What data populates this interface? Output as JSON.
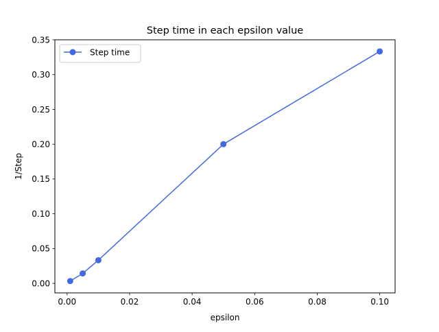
{
  "chart_data": {
    "type": "line",
    "title": "Step time in each epsilon value",
    "xlabel": "epsilon",
    "ylabel": "1/Step",
    "xlim": [
      -0.0039,
      0.1049
    ],
    "ylim": [
      -0.0137,
      0.35
    ],
    "xticks": [
      0.0,
      0.02,
      0.04,
      0.06,
      0.08,
      0.1
    ],
    "xtick_labels": [
      "0.00",
      "0.02",
      "0.04",
      "0.06",
      "0.08",
      "0.10"
    ],
    "yticks": [
      0.0,
      0.05,
      0.1,
      0.15,
      0.2,
      0.25,
      0.3,
      0.35
    ],
    "ytick_labels": [
      "0.00",
      "0.05",
      "0.10",
      "0.15",
      "0.20",
      "0.25",
      "0.30",
      "0.35"
    ],
    "grid": false,
    "legend_position": "upper-left",
    "series": [
      {
        "name": "Step time",
        "color": "#4169e1",
        "marker": "circle",
        "x": [
          0.001,
          0.005,
          0.01,
          0.05,
          0.1
        ],
        "y": [
          0.0033,
          0.0143,
          0.0333,
          0.2,
          0.3333
        ]
      }
    ]
  }
}
